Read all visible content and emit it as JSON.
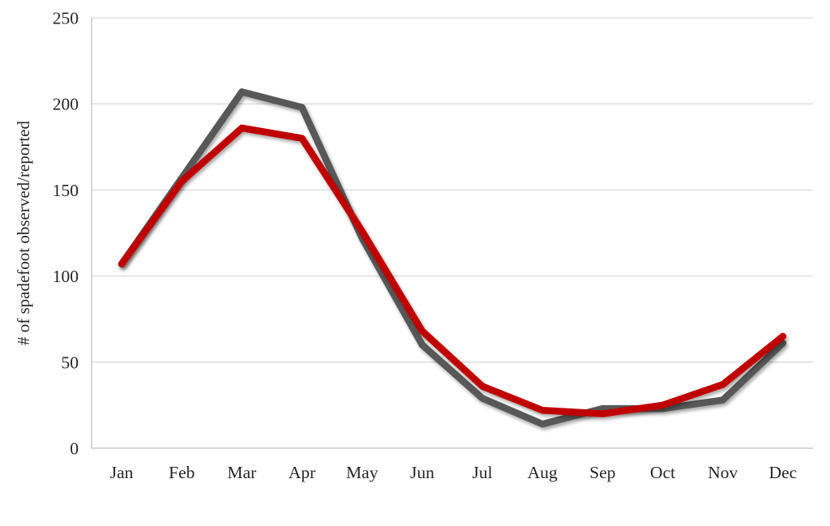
{
  "chart_data": {
    "type": "line",
    "title": "",
    "xlabel": "",
    "ylabel": "# of spadefoot observed/reported",
    "categories": [
      "Jan",
      "Feb",
      "Mar",
      "Apr",
      "May",
      "Jun",
      "Jul",
      "Aug",
      "Sep",
      "Oct",
      "Nov",
      "Dec"
    ],
    "series": [
      {
        "name": "gray-series",
        "color": "#595959",
        "values": [
          107,
          157,
          207,
          198,
          122,
          60,
          29,
          14,
          23,
          23,
          28,
          61
        ]
      },
      {
        "name": "red-series",
        "color": "#C00000",
        "values": [
          107,
          155,
          186,
          180,
          126,
          68,
          36,
          22,
          20,
          25,
          37,
          65
        ]
      }
    ],
    "ylim": [
      0,
      250
    ],
    "yticks": [
      0,
      50,
      100,
      150,
      200,
      250
    ],
    "grid": true,
    "legend_position": "none"
  },
  "colors": {
    "background": "#ffffff",
    "gridline": "#d9d9d9",
    "axis_line": "#bfbfbf",
    "tick_text": "#262626"
  }
}
